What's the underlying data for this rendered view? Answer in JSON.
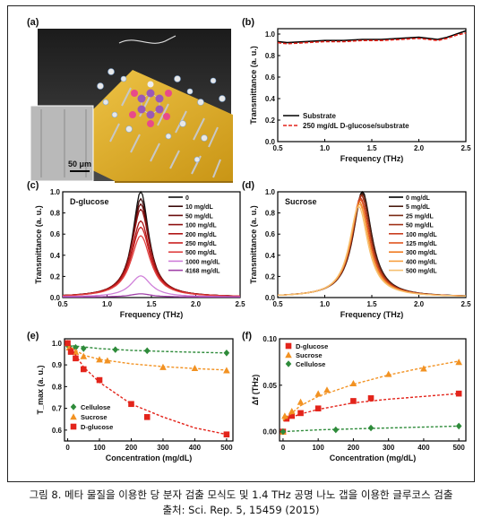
{
  "caption": {
    "line1": "그림 8. 메타 물질을 이용한 당 분자 검출 모식도 및 1.4 THz 공명 나노 갭을 이용한 글루코스 검출",
    "line2": "출처: Sci. Rep. 5, 15459 (2015)"
  },
  "panels": {
    "a": {
      "label": "(a)",
      "scalebar": "50 μm"
    },
    "b": {
      "label": "(b)"
    },
    "c": {
      "label": "(c)"
    },
    "d": {
      "label": "(d)"
    },
    "e": {
      "label": "(e)"
    },
    "f": {
      "label": "(f)"
    }
  },
  "colors": {
    "red_gradient": [
      "#111111",
      "#3a0a0a",
      "#6a0d0d",
      "#8e1010",
      "#b01515",
      "#c92020",
      "#e04040",
      "#cf7fd9",
      "#a040a8"
    ],
    "sucrose_gradient": [
      "#000000",
      "#4a1c10",
      "#7a2a14",
      "#a03218",
      "#c83c1e",
      "#e0541e",
      "#f07a20",
      "#f7a040",
      "#f5c070"
    ],
    "red": "#e3241b",
    "orange": "#f29222",
    "green": "#2e8b3a"
  },
  "chart_data": [
    {
      "panel": "b",
      "type": "line",
      "xlabel": "Frequency (THz)",
      "ylabel": "Transmittance (a. u.)",
      "xlim": [
        0.5,
        2.5
      ],
      "ylim": [
        0.0,
        1.05
      ],
      "xticks": [
        "0.5",
        "1.0",
        "1.5",
        "2.0",
        "2.5"
      ],
      "yticks": [
        "0.0",
        "0.2",
        "0.4",
        "0.6",
        "0.8",
        "1.0"
      ],
      "legend": "bottom",
      "series": [
        {
          "name": "Substrate",
          "style": "solid",
          "color": "#000000",
          "x": [
            0.5,
            0.6,
            0.8,
            1.0,
            1.2,
            1.4,
            1.6,
            1.8,
            2.0,
            2.1,
            2.2,
            2.3,
            2.4,
            2.5
          ],
          "y": [
            0.93,
            0.92,
            0.93,
            0.94,
            0.94,
            0.95,
            0.95,
            0.96,
            0.97,
            0.96,
            0.95,
            0.97,
            1.0,
            1.03
          ]
        },
        {
          "name": "250 mg/dL D-glucose/substrate",
          "style": "dashed",
          "color": "#e3241b",
          "x": [
            0.5,
            0.6,
            0.8,
            1.0,
            1.2,
            1.4,
            1.6,
            1.8,
            2.0,
            2.1,
            2.2,
            2.3,
            2.4,
            2.5
          ],
          "y": [
            0.92,
            0.91,
            0.92,
            0.93,
            0.93,
            0.94,
            0.94,
            0.95,
            0.96,
            0.95,
            0.94,
            0.96,
            0.99,
            1.01
          ]
        }
      ]
    },
    {
      "panel": "c",
      "type": "line",
      "title": "D-glucose",
      "xlabel": "Frequency (THz)",
      "ylabel": "Transmittance (a. u.)",
      "xlim": [
        0.5,
        2.5
      ],
      "ylim": [
        0.0,
        1.0
      ],
      "xticks": [
        "0.5",
        "1.0",
        "1.5",
        "2.0",
        "2.5"
      ],
      "yticks": [
        "0.0",
        "0.2",
        "0.4",
        "0.6",
        "0.8",
        "1.0"
      ],
      "legend": "top-right",
      "peak_center": 1.38,
      "series": [
        {
          "name": "0",
          "peak": 1.0
        },
        {
          "name": "10 mg/dL",
          "peak": 0.93
        },
        {
          "name": "50 mg/dL",
          "peak": 0.88
        },
        {
          "name": "100 mg/dL",
          "peak": 0.83
        },
        {
          "name": "200 mg/dL",
          "peak": 0.72
        },
        {
          "name": "250 mg/dL",
          "peak": 0.66
        },
        {
          "name": "500 mg/dL",
          "peak": 0.58
        },
        {
          "name": "1000 mg/dL",
          "peak": 0.2
        },
        {
          "name": "4168 mg/dL",
          "peak": 0.03
        }
      ]
    },
    {
      "panel": "d",
      "type": "line",
      "title": "Sucrose",
      "xlabel": "Frequency (THz)",
      "ylabel": "Transmittance (a. u.)",
      "xlim": [
        0.5,
        2.5
      ],
      "ylim": [
        0.0,
        1.0
      ],
      "xticks": [
        "0.5",
        "1.0",
        "1.5",
        "2.0",
        "2.5"
      ],
      "yticks": [
        "0.0",
        "0.2",
        "0.4",
        "0.6",
        "0.8",
        "1.0"
      ],
      "legend": "top-right",
      "series": [
        {
          "name": "0 mg/dL",
          "peak": 1.0,
          "center": 1.4
        },
        {
          "name": "5 mg/dL",
          "peak": 0.98,
          "center": 1.4
        },
        {
          "name": "25 mg/dL",
          "peak": 0.97,
          "center": 1.39
        },
        {
          "name": "50 mg/dL",
          "peak": 0.96,
          "center": 1.39
        },
        {
          "name": "100 mg/dL",
          "peak": 0.94,
          "center": 1.38
        },
        {
          "name": "125 mg/dL",
          "peak": 0.92,
          "center": 1.38
        },
        {
          "name": "300 mg/dL",
          "peak": 0.9,
          "center": 1.37
        },
        {
          "name": "400 mg/dL",
          "peak": 0.88,
          "center": 1.37
        },
        {
          "name": "500 mg/dL",
          "peak": 0.86,
          "center": 1.36
        }
      ]
    },
    {
      "panel": "e",
      "type": "scatter",
      "xlabel": "Concentration (mg/dL)",
      "ylabel": "T_max (a. u.)",
      "xlim": [
        -10,
        520
      ],
      "ylim": [
        0.55,
        1.02
      ],
      "xticks": [
        "0",
        "100",
        "200",
        "300",
        "400",
        "500"
      ],
      "yticks": [
        "0.6",
        "0.7",
        "0.8",
        "0.9",
        "1.0"
      ],
      "legend": "bottom-left",
      "series": [
        {
          "name": "Cellulose",
          "marker": "diamond",
          "color": "#2e8b3a",
          "x": [
            0,
            5,
            25,
            50,
            150,
            250,
            500
          ],
          "y": [
            0.99,
            0.985,
            0.98,
            0.975,
            0.97,
            0.965,
            0.955
          ],
          "fit": [
            [
              0,
              0.99
            ],
            [
              100,
              0.975
            ],
            [
              200,
              0.967
            ],
            [
              300,
              0.962
            ],
            [
              400,
              0.958
            ],
            [
              500,
              0.955
            ]
          ]
        },
        {
          "name": "Sucrose",
          "marker": "triangle",
          "color": "#f29222",
          "x": [
            0,
            5,
            25,
            50,
            100,
            125,
            300,
            400,
            500
          ],
          "y": [
            1.0,
            0.98,
            0.96,
            0.94,
            0.925,
            0.92,
            0.89,
            0.885,
            0.875
          ],
          "fit": [
            [
              0,
              0.99
            ],
            [
              50,
              0.945
            ],
            [
              100,
              0.925
            ],
            [
              200,
              0.905
            ],
            [
              300,
              0.892
            ],
            [
              400,
              0.883
            ],
            [
              500,
              0.876
            ]
          ]
        },
        {
          "name": "D-glucose",
          "marker": "square",
          "color": "#e3241b",
          "x": [
            0,
            10,
            25,
            50,
            100,
            200,
            250,
            500
          ],
          "y": [
            1.0,
            0.96,
            0.93,
            0.88,
            0.83,
            0.72,
            0.66,
            0.58
          ],
          "fit": [
            [
              0,
              1.0
            ],
            [
              50,
              0.89
            ],
            [
              100,
              0.82
            ],
            [
              200,
              0.72
            ],
            [
              300,
              0.66
            ],
            [
              400,
              0.61
            ],
            [
              500,
              0.58
            ]
          ]
        }
      ]
    },
    {
      "panel": "f",
      "type": "scatter",
      "xlabel": "Concentration (mg/dL)",
      "ylabel": "Δf (THz)",
      "xlim": [
        -10,
        520
      ],
      "ylim": [
        -0.01,
        0.1
      ],
      "xticks": [
        "0",
        "100",
        "200",
        "300",
        "400",
        "500"
      ],
      "yticks": [
        "0.00",
        "0.05",
        "0.10"
      ],
      "legend": "top-left",
      "series": [
        {
          "name": "D-glucose",
          "marker": "square",
          "color": "#e3241b",
          "x": [
            0,
            10,
            25,
            50,
            100,
            200,
            250,
            500
          ],
          "y": [
            0.0,
            0.014,
            0.017,
            0.02,
            0.025,
            0.033,
            0.036,
            0.041
          ],
          "fit": [
            [
              0,
              0.012
            ],
            [
              50,
              0.019
            ],
            [
              100,
              0.024
            ],
            [
              200,
              0.031
            ],
            [
              300,
              0.035
            ],
            [
              400,
              0.038
            ],
            [
              500,
              0.041
            ]
          ]
        },
        {
          "name": "Sucrose",
          "marker": "triangle",
          "color": "#f29222",
          "x": [
            0,
            5,
            25,
            50,
            100,
            125,
            200,
            300,
            400,
            500
          ],
          "y": [
            0.0,
            0.017,
            0.022,
            0.032,
            0.041,
            0.045,
            0.052,
            0.062,
            0.068,
            0.075
          ],
          "fit": [
            [
              0,
              0.012
            ],
            [
              50,
              0.028
            ],
            [
              100,
              0.038
            ],
            [
              200,
              0.051
            ],
            [
              300,
              0.061
            ],
            [
              400,
              0.069
            ],
            [
              500,
              0.076
            ]
          ]
        },
        {
          "name": "Cellulose",
          "marker": "diamond",
          "color": "#2e8b3a",
          "x": [
            0,
            150,
            250,
            500
          ],
          "y": [
            0.0,
            0.002,
            0.004,
            0.006
          ],
          "fit": [
            [
              0,
              0.0
            ],
            [
              100,
              0.002
            ],
            [
              200,
              0.003
            ],
            [
              300,
              0.004
            ],
            [
              400,
              0.005
            ],
            [
              500,
              0.006
            ]
          ]
        }
      ]
    }
  ]
}
